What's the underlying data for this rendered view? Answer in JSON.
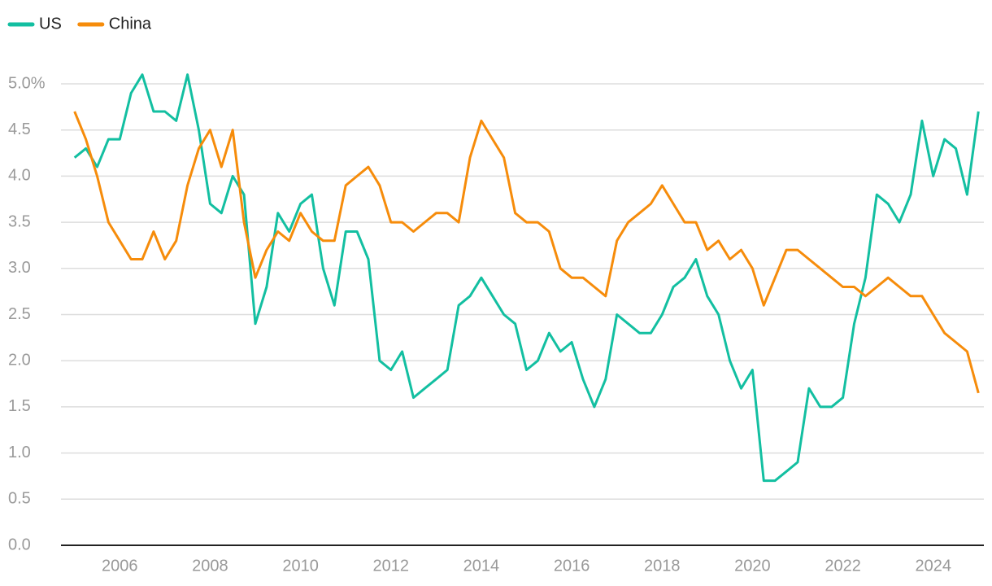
{
  "chart_data": {
    "type": "line",
    "x": [
      2005,
      2005.25,
      2005.5,
      2005.75,
      2006,
      2006.25,
      2006.5,
      2006.75,
      2007,
      2007.25,
      2007.5,
      2007.75,
      2008,
      2008.25,
      2008.5,
      2008.75,
      2009,
      2009.25,
      2009.5,
      2009.75,
      2010,
      2010.25,
      2010.5,
      2010.75,
      2011,
      2011.25,
      2011.5,
      2011.75,
      2012,
      2012.25,
      2012.5,
      2012.75,
      2013,
      2013.25,
      2013.5,
      2013.75,
      2014,
      2014.25,
      2014.5,
      2014.75,
      2015,
      2015.25,
      2015.5,
      2015.75,
      2016,
      2016.25,
      2016.5,
      2016.75,
      2017,
      2017.25,
      2017.5,
      2017.75,
      2018,
      2018.25,
      2018.5,
      2018.75,
      2019,
      2019.25,
      2019.5,
      2019.75,
      2020,
      2020.25,
      2020.5,
      2020.75,
      2021,
      2021.25,
      2021.5,
      2021.75,
      2022,
      2022.25,
      2022.5,
      2022.75,
      2023,
      2023.25,
      2023.5,
      2023.75,
      2024,
      2024.25,
      2024.5,
      2024.75,
      2025
    ],
    "series": [
      {
        "name": "US",
        "color": "#13bfa1",
        "values": [
          4.2,
          4.3,
          4.1,
          4.4,
          4.4,
          4.9,
          5.1,
          4.7,
          4.7,
          4.6,
          5.1,
          4.5,
          3.7,
          3.6,
          4.0,
          3.8,
          2.4,
          2.8,
          3.6,
          3.4,
          3.7,
          3.8,
          3.0,
          2.6,
          3.4,
          3.4,
          3.1,
          2.0,
          1.9,
          2.1,
          1.6,
          1.7,
          1.8,
          1.9,
          2.6,
          2.7,
          2.9,
          2.7,
          2.5,
          2.4,
          1.9,
          2.0,
          2.3,
          2.1,
          2.2,
          1.8,
          1.5,
          1.8,
          2.5,
          2.4,
          2.3,
          2.3,
          2.5,
          2.8,
          2.9,
          3.1,
          2.7,
          2.5,
          2.0,
          1.7,
          1.9,
          0.7,
          0.7,
          0.8,
          0.9,
          1.7,
          1.5,
          1.5,
          1.6,
          2.4,
          2.9,
          3.8,
          3.7,
          3.5,
          3.8,
          4.6,
          4.0,
          4.4,
          4.3,
          3.8,
          4.7
        ]
      },
      {
        "name": "China",
        "color": "#f68c0b",
        "values": [
          4.7,
          4.4,
          4.0,
          3.5,
          3.3,
          3.1,
          3.1,
          3.4,
          3.1,
          3.3,
          3.9,
          4.3,
          4.5,
          4.1,
          4.5,
          3.5,
          2.9,
          3.2,
          3.4,
          3.3,
          3.6,
          3.4,
          3.3,
          3.3,
          3.9,
          4.0,
          4.1,
          3.9,
          3.5,
          3.5,
          3.4,
          3.5,
          3.6,
          3.6,
          3.5,
          4.2,
          4.6,
          4.4,
          4.2,
          3.6,
          3.5,
          3.5,
          3.4,
          3.0,
          2.9,
          2.9,
          2.8,
          2.7,
          3.3,
          3.5,
          3.6,
          3.7,
          3.9,
          3.7,
          3.5,
          3.5,
          3.2,
          3.3,
          3.1,
          3.2,
          3.0,
          2.6,
          2.9,
          3.2,
          3.2,
          3.1,
          3.0,
          2.9,
          2.8,
          2.8,
          2.7,
          2.8,
          2.9,
          2.8,
          2.7,
          2.7,
          2.5,
          2.3,
          2.2,
          2.1,
          1.65
        ]
      }
    ],
    "xlim": [
      2004.7,
      2025.12
    ],
    "xticks": [
      2006,
      2008,
      2010,
      2012,
      2014,
      2016,
      2018,
      2020,
      2022,
      2024
    ],
    "ylim": [
      0,
      5.3
    ],
    "yticks": [
      {
        "value": 0,
        "label": "0.0"
      },
      0.5,
      {
        "value": 1,
        "label": "1.0"
      },
      1.5,
      {
        "value": 2,
        "label": "2.0"
      },
      2.5,
      {
        "value": 3,
        "label": "3.0"
      },
      3.5,
      {
        "value": 4,
        "label": "4.0"
      },
      4.5,
      {
        "value": 5,
        "label": "5.0%"
      }
    ],
    "grid": true,
    "legend": "top-left"
  }
}
